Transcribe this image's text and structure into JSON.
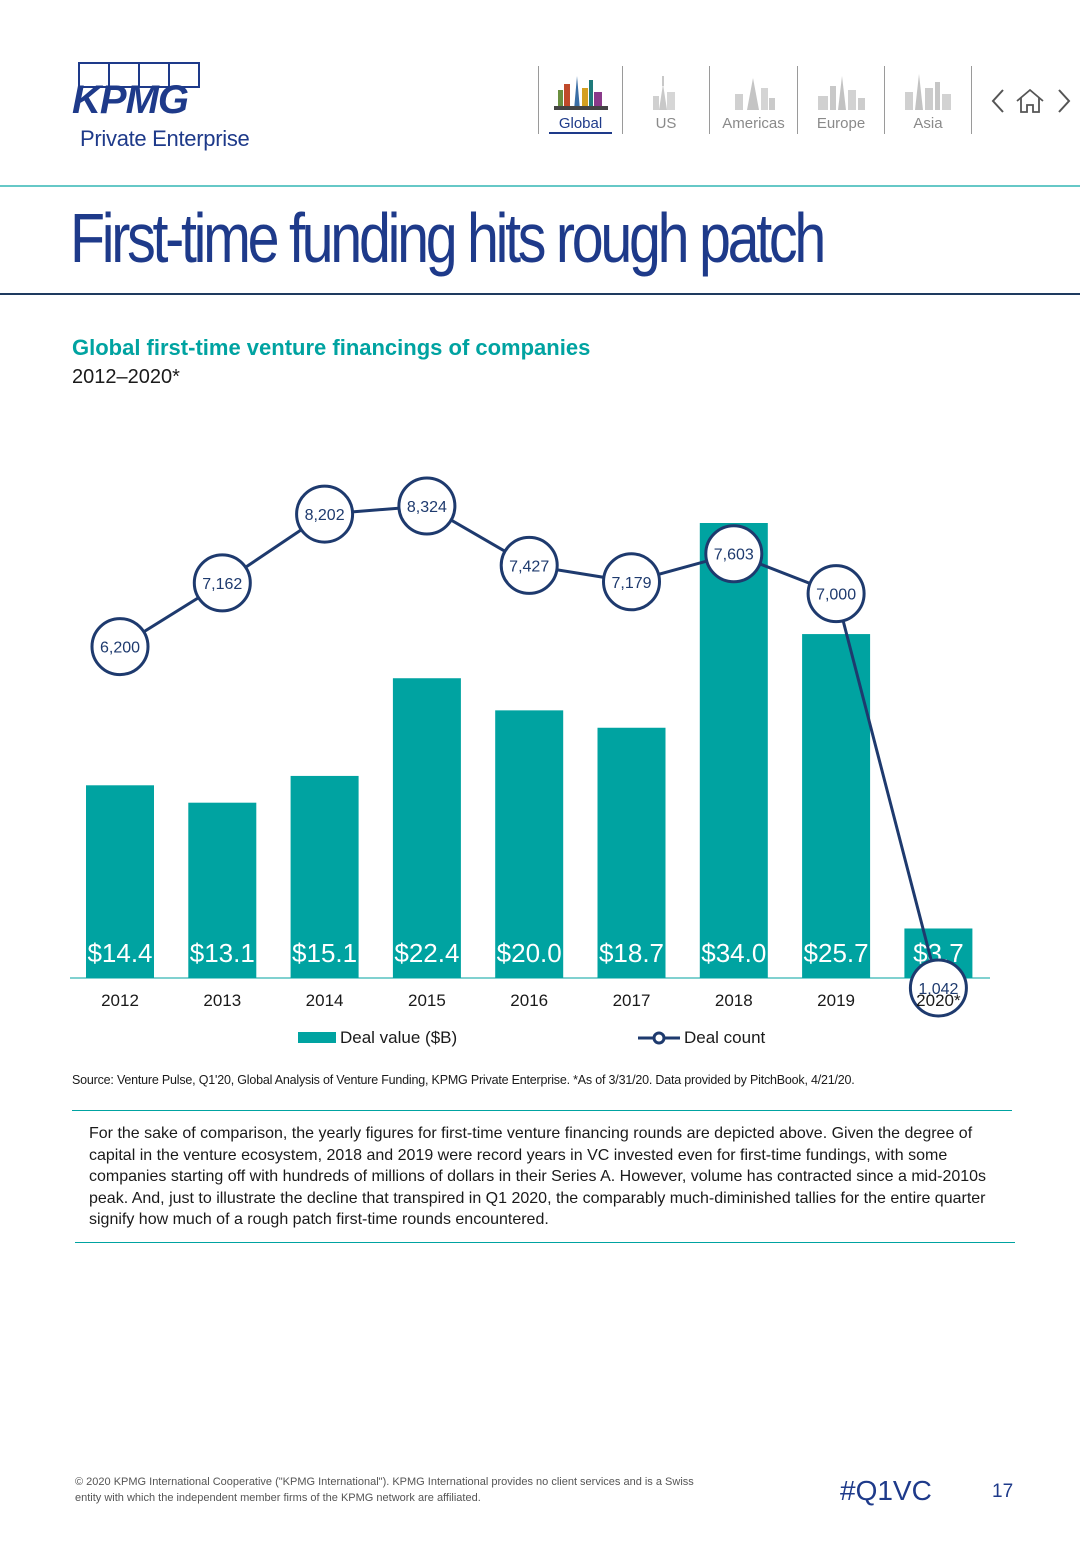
{
  "header": {
    "logo": {
      "word": "KPMG",
      "subtitle": "Private Enterprise"
    },
    "nav": [
      {
        "label": "Global",
        "icon": "global-skyline-icon",
        "active": true
      },
      {
        "label": "US",
        "icon": "us-skyline-icon",
        "active": false
      },
      {
        "label": "Americas",
        "icon": "americas-skyline-icon",
        "active": false
      },
      {
        "label": "Europe",
        "icon": "europe-skyline-icon",
        "active": false
      },
      {
        "label": "Asia",
        "icon": "asia-skyline-icon",
        "active": false
      }
    ],
    "controls": {
      "prev": "chevron-left-icon",
      "home": "home-icon",
      "next": "chevron-right-icon"
    }
  },
  "page_title": "First-time funding hits rough patch",
  "chart_title": "Global first-time venture financings of companies",
  "chart_subtitle": "2012–2020*",
  "chart_data": {
    "type": "bar",
    "categories": [
      "2012",
      "2013",
      "2014",
      "2015",
      "2016",
      "2017",
      "2018",
      "2019",
      "2020*"
    ],
    "series": [
      {
        "name": "Deal value ($B)",
        "type": "bar",
        "values": [
          14.4,
          13.1,
          15.1,
          22.4,
          20.0,
          18.7,
          34.0,
          25.7,
          3.7
        ],
        "labels": [
          "$14.4",
          "$13.1",
          "$15.1",
          "$22.4",
          "$20.0",
          "$18.7",
          "$34.0",
          "$25.7",
          "$3.7"
        ],
        "color": "#00a3a1"
      },
      {
        "name": "Deal count",
        "type": "line",
        "values": [
          6200,
          7162,
          8202,
          8324,
          7427,
          7179,
          7603,
          7000,
          1042
        ],
        "labels": [
          "6,200",
          "7,162",
          "8,202",
          "8,324",
          "7,427",
          "7,179",
          "7,603",
          "7,000",
          "1,042"
        ],
        "color": "#1e3a6e"
      }
    ],
    "legend": "bottom-center",
    "grid": false
  },
  "source": "Source: Venture Pulse, Q1'20, Global Analysis of Venture Funding, KPMG Private Enterprise. *As of 3/31/20. Data provided by PitchBook, 4/21/20.",
  "body_text": "For the sake of comparison, the yearly figures for first-time venture financing rounds are depicted above. Given the degree of capital in the venture ecosystem, 2018 and 2019 were record years in VC invested even for first-time fundings, with some companies starting off with hundreds of millions of dollars in their Series A. However, volume has contracted since a mid-2010s peak. And, just to illustrate the decline that transpired in Q1 2020, the comparably much-diminished tallies for the entire quarter signify how much of a rough patch first-time rounds encountered.",
  "footer": {
    "copyright": "© 2020 KPMG International Cooperative (\"KPMG International\"). KPMG International provides no client services and is a Swiss entity with which the independent member firms of the KPMG network are affiliated.",
    "hashtag": "#Q1VC",
    "page_number": "17"
  }
}
